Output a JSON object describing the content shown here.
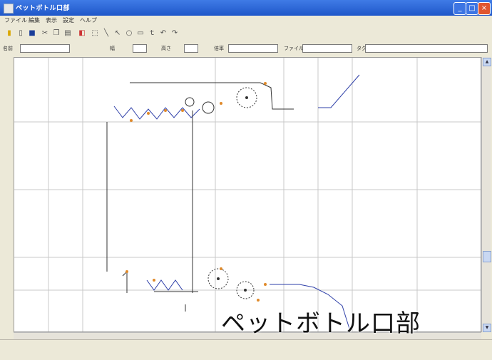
{
  "window": {
    "title": "ペットボトル口部",
    "controls": {
      "minimize": "_",
      "maximize": "□",
      "close": "×"
    }
  },
  "menu": {
    "items": [
      "ファイル",
      "編集",
      "表示",
      "設定",
      "ヘルプ"
    ]
  },
  "toolbar": {
    "icons": [
      "new-icon",
      "open-icon",
      "save-icon",
      "cut-icon",
      "copy-icon",
      "paste-icon",
      "zoom-icon",
      "select-icon",
      "line-icon",
      "arrow-icon",
      "circle-icon",
      "rect-icon",
      "text-icon",
      "undo-icon",
      "redo-icon"
    ]
  },
  "fields": {
    "name_label": "名前",
    "name_value": "",
    "width_label": "幅",
    "width_value": "",
    "height_label": "高さ",
    "height_value": "",
    "scale_label": "倍率",
    "file_label": "ファイル",
    "file_value": "",
    "tag_label": "タグ",
    "tag_value": ""
  },
  "diagram": {
    "labels": {
      "top_span": "",
      "upper_roll": "",
      "left_idler": "",
      "mid_idler": "",
      "upper_motor": "",
      "right_guide": "",
      "right_ramp": "",
      "left_vertical": "",
      "center_vertical": "",
      "center_note": "",
      "lower_roll": "",
      "lower_motor": "",
      "lower_guide": "",
      "lower_base": ""
    }
  },
  "status": {
    "left": "",
    "center": "",
    "right": ""
  },
  "caption": "ペットボトル口部",
  "colors": {
    "titlebar": "#1f57c9",
    "canvas_grid": "#c8c8c8",
    "accent_marker": "#e08a2a",
    "link_blue": "#2e3fa8"
  }
}
